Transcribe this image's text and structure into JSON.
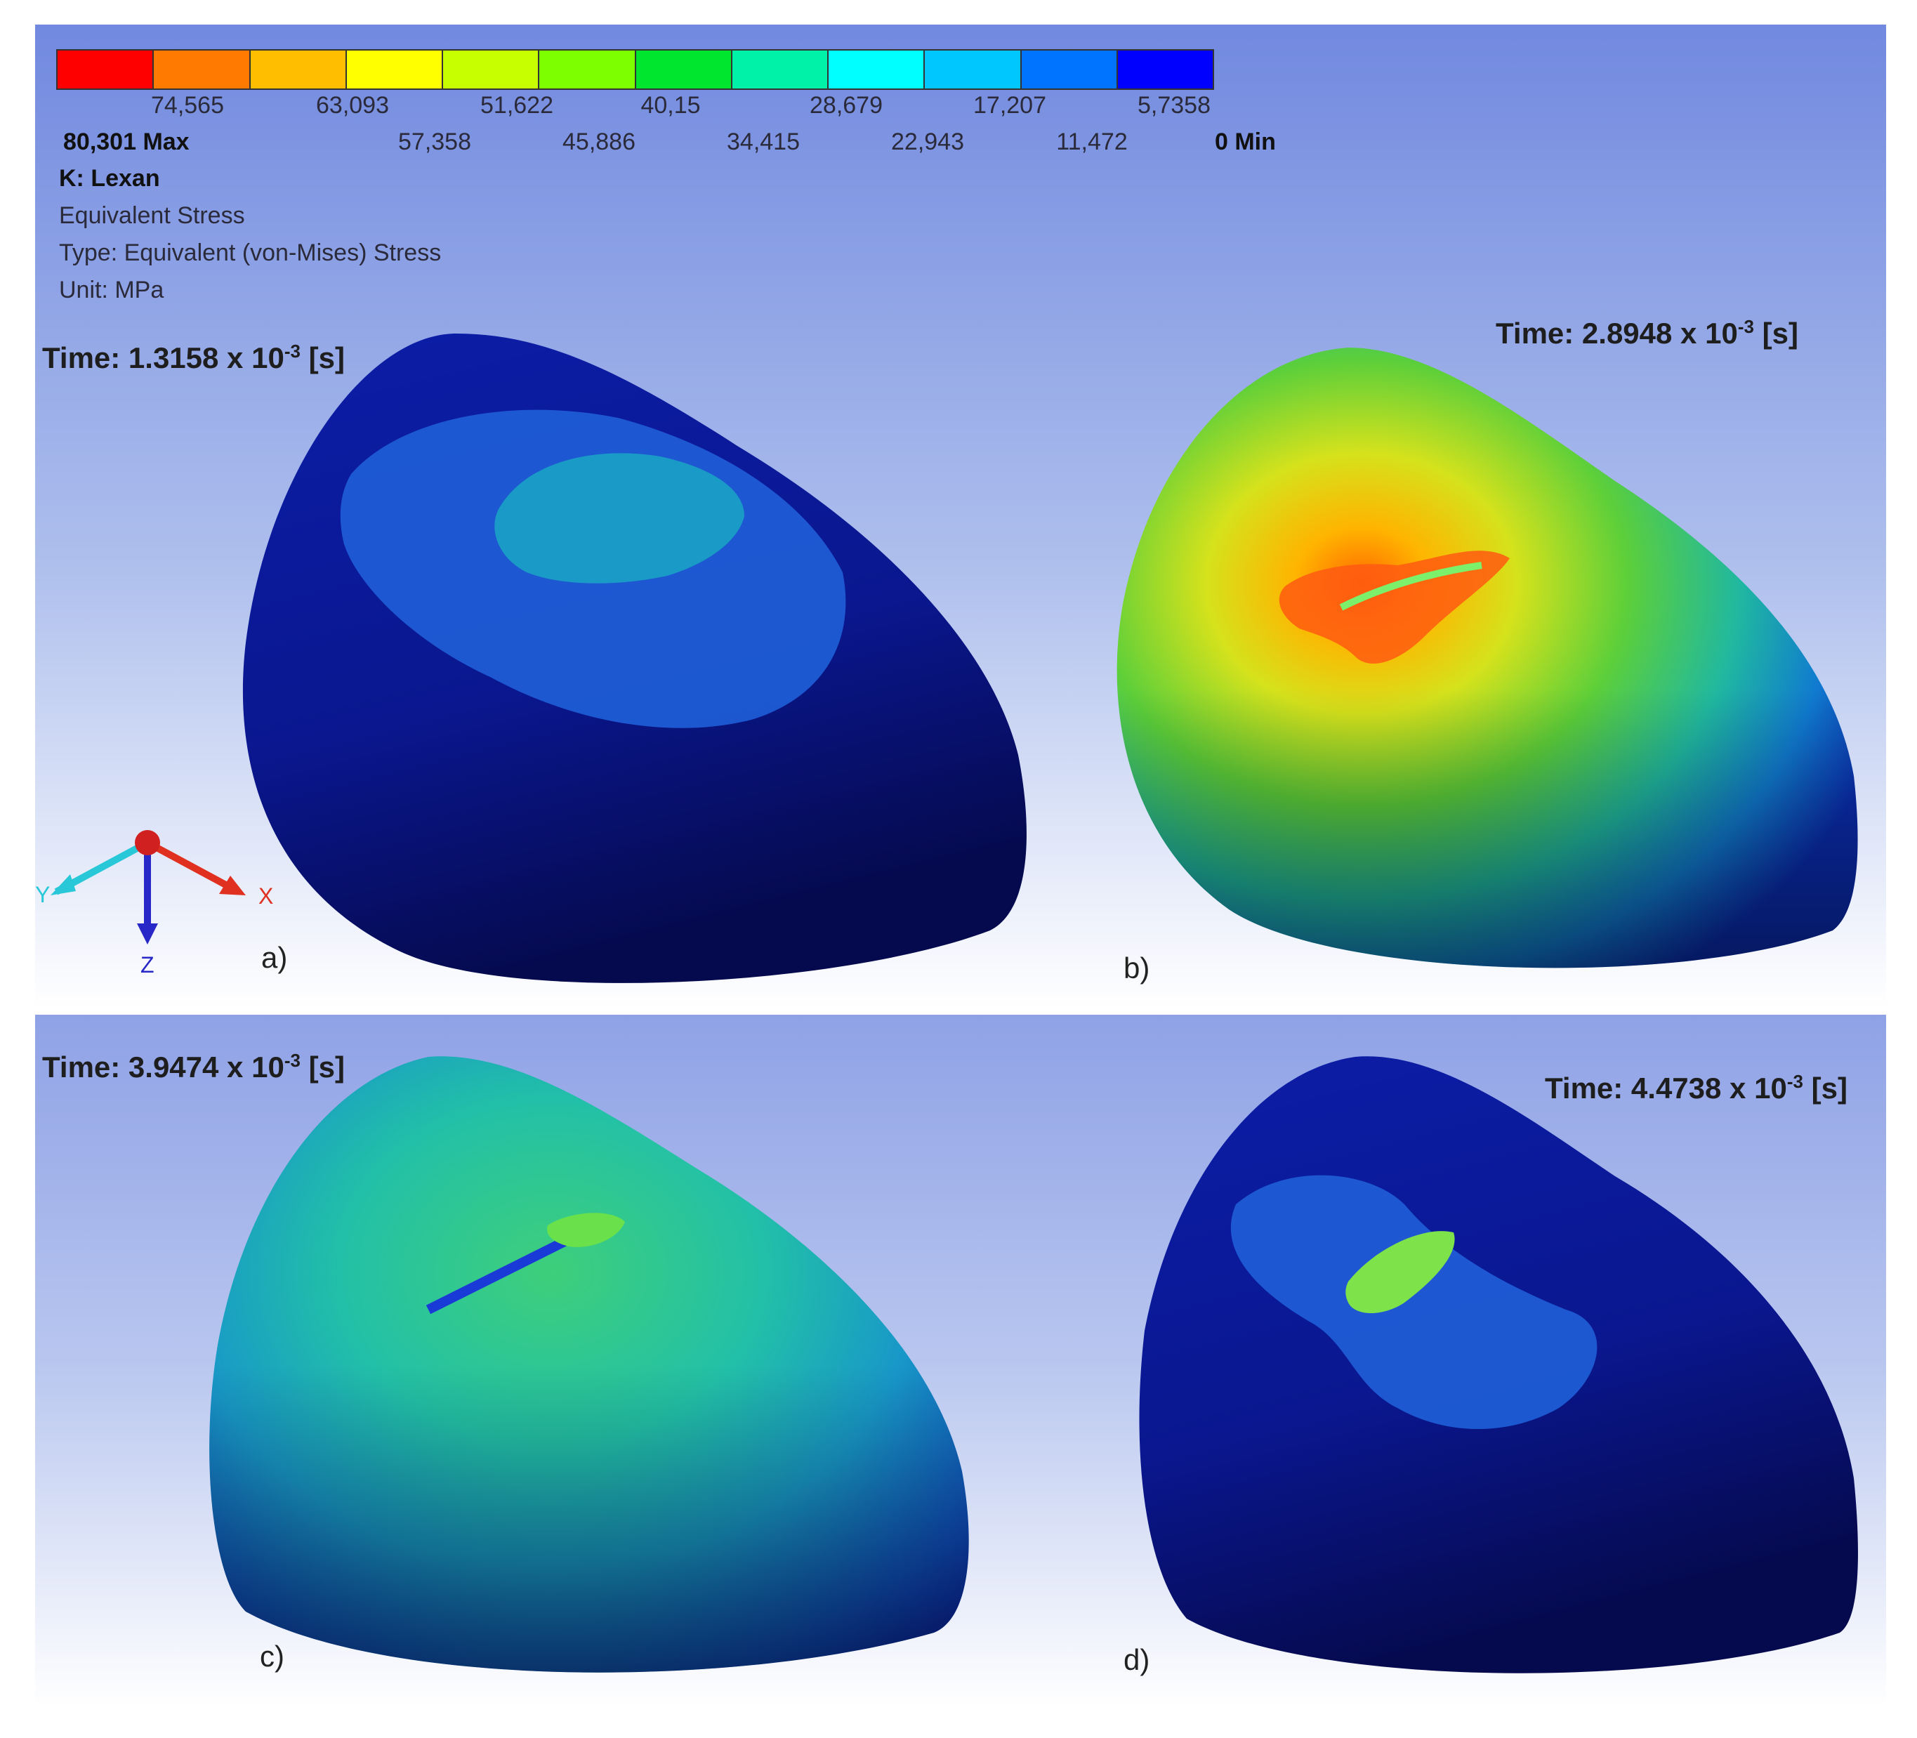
{
  "legend": {
    "colors": [
      "#ff0000",
      "#ff7a00",
      "#ffbf00",
      "#ffff00",
      "#c8ff00",
      "#7dff00",
      "#00e62e",
      "#00f2a8",
      "#00ffff",
      "#00c8ff",
      "#0073ff",
      "#0000ff"
    ],
    "upper_ticks": [
      "74,565",
      "63,093",
      "51,622",
      "40,15",
      "28,679",
      "17,207",
      "5,7358"
    ],
    "lower_ticks": [
      "57,358",
      "45,886",
      "34,415",
      "22,943",
      "11,472"
    ],
    "max_label": "80,301 Max",
    "min_label": "0 Min",
    "title": "K: Lexan",
    "result": "Equivalent Stress",
    "type": "Type: Equivalent (von-Mises) Stress",
    "unit": "Unit: MPa"
  },
  "panels": [
    {
      "time_prefix": "Time: 1.3158 x 10",
      "time_exp": "-3",
      "time_suffix": " [s]",
      "label": "a)"
    },
    {
      "time_prefix": "Time: 2.8948 x 10",
      "time_exp": "-3",
      "time_suffix": " [s]",
      "label": "b)"
    },
    {
      "time_prefix": "Time: 3.9474 x 10",
      "time_exp": "-3",
      "time_suffix": " [s]",
      "label": "c)"
    },
    {
      "time_prefix": "Time: 4.4738 x 10",
      "time_exp": "-3",
      "time_suffix": " [s]",
      "label": "d)"
    }
  ],
  "triad": {
    "x_label": "X",
    "y_label": "Y",
    "z_label": "Z",
    "x_color": "#e03020",
    "y_color": "#28c8d8",
    "z_color": "#2828c8"
  }
}
